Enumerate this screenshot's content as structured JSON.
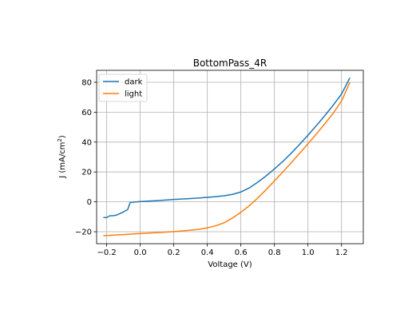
{
  "chart_data": {
    "type": "line",
    "title": "BottomPass_4R",
    "xlabel": "Voltage (V)",
    "ylabel_main": "J (mA/cm",
    "ylabel_sup": "2",
    "ylabel_close": ")",
    "xlim": [
      -0.26,
      1.33
    ],
    "ylim": [
      -28,
      88
    ],
    "xticks": [
      -0.2,
      0.0,
      0.2,
      0.4,
      0.6,
      0.8,
      1.0,
      1.2
    ],
    "xtick_labels": [
      "−0.2",
      "0.0",
      "0.2",
      "0.4",
      "0.6",
      "0.8",
      "1.0",
      "1.2"
    ],
    "yticks": [
      -20,
      0,
      20,
      40,
      60,
      80
    ],
    "ytick_labels": [
      "−20",
      "0",
      "20",
      "40",
      "60",
      "80"
    ],
    "grid": true,
    "legend_position": "top-left",
    "series": [
      {
        "name": "dark",
        "color": "#1f77b4",
        "x": [
          -0.22,
          -0.2,
          -0.18,
          -0.16,
          -0.14,
          -0.12,
          -0.1,
          -0.075,
          -0.06,
          -0.04,
          0.0,
          0.1,
          0.2,
          0.3,
          0.4,
          0.45,
          0.5,
          0.55,
          0.6,
          0.65,
          0.7,
          0.75,
          0.8,
          0.85,
          0.9,
          0.95,
          1.0,
          1.05,
          1.1,
          1.15,
          1.2,
          1.25
        ],
        "y": [
          -10.5,
          -10.5,
          -9.3,
          -9.2,
          -8.8,
          -7.8,
          -6.7,
          -5.2,
          -0.4,
          -0.2,
          0.2,
          0.8,
          1.6,
          2.2,
          3.0,
          3.5,
          4.1,
          5.0,
          6.6,
          9.3,
          13.1,
          17.3,
          22.0,
          27.0,
          32.5,
          38.4,
          44.6,
          51.0,
          57.6,
          64.6,
          72.1,
          83.0
        ]
      },
      {
        "name": "light",
        "color": "#ff7f0e",
        "x": [
          -0.22,
          -0.2,
          -0.15,
          -0.1,
          -0.05,
          0.0,
          0.1,
          0.2,
          0.3,
          0.35,
          0.4,
          0.45,
          0.5,
          0.55,
          0.6,
          0.65,
          0.7,
          0.75,
          0.8,
          0.85,
          0.9,
          0.95,
          1.0,
          1.05,
          1.1,
          1.15,
          1.2,
          1.25
        ],
        "y": [
          -22.6,
          -22.5,
          -22.2,
          -21.9,
          -21.5,
          -21.2,
          -20.6,
          -19.9,
          -19.0,
          -18.4,
          -17.4,
          -16.0,
          -14.0,
          -10.8,
          -7.0,
          -2.6,
          2.5,
          8.1,
          14.0,
          20.0,
          26.1,
          32.4,
          38.8,
          45.4,
          52.2,
          59.2,
          67.4,
          80.0
        ]
      }
    ]
  }
}
